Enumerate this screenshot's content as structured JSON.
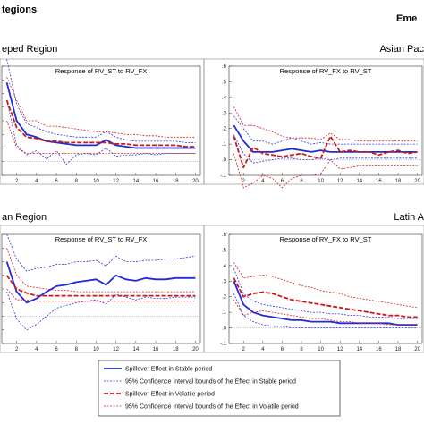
{
  "headers": {
    "left_group": "tegions",
    "right_group": "Eme",
    "top_left_region": "eped Region",
    "top_right_region": "Asian Pac",
    "bottom_left_region": "an Region",
    "bottom_right_region": "Latin A"
  },
  "legend": {
    "items": [
      {
        "label": "Spillover Effect in Stable period",
        "color": "#1f2bd6",
        "style": "solid-thick"
      },
      {
        "label": "95% Confidence Interval bounds of the Effect in Stable period",
        "color": "#2b36e0",
        "style": "dotted"
      },
      {
        "label": "Spillover Effect in Volatile period",
        "color": "#cc1a1a",
        "style": "dashed-thick"
      },
      {
        "label": "95% Confidence Interval bounds of the Effect in Volatile period",
        "color": "#d62020",
        "style": "dotted"
      }
    ]
  },
  "chart_data": [
    {
      "type": "line",
      "title": "Response of RV_ST to RV_FX",
      "x": [
        1,
        2,
        3,
        4,
        5,
        6,
        7,
        8,
        9,
        10,
        11,
        12,
        13,
        14,
        15,
        16,
        17,
        18,
        19,
        20
      ],
      "xticks": [
        2,
        4,
        6,
        8,
        10,
        12,
        14,
        16,
        18,
        20
      ],
      "series": [
        {
          "name": "Spillover Effect in Stable period",
          "values": [
            0.58,
            0.3,
            0.2,
            0.18,
            0.15,
            0.14,
            0.13,
            0.12,
            0.12,
            0.12,
            0.16,
            0.12,
            0.11,
            0.1,
            0.1,
            0.1,
            0.1,
            0.1,
            0.1,
            0.1
          ]
        },
        {
          "name": "95% Confidence Interval bounds of the Effect in Stable period (upper)",
          "values": [
            0.75,
            0.42,
            0.28,
            0.25,
            0.22,
            0.2,
            0.19,
            0.18,
            0.18,
            0.18,
            0.22,
            0.18,
            0.16,
            0.15,
            0.15,
            0.15,
            0.15,
            0.15,
            0.14,
            0.14
          ]
        },
        {
          "name": "95% Confidence Interval bounds of the Effect in Stable period (lower)",
          "values": [
            0.45,
            0.12,
            0.05,
            0.08,
            0.02,
            0.08,
            -0.02,
            0.05,
            0.06,
            0.05,
            0.1,
            0.04,
            0.05,
            0.05,
            0.06,
            0.05,
            0.06,
            0.06,
            0.06,
            0.06
          ]
        },
        {
          "name": "Spillover Effect in Volatile period",
          "values": [
            0.45,
            0.25,
            0.18,
            0.17,
            0.15,
            0.15,
            0.14,
            0.14,
            0.14,
            0.14,
            0.14,
            0.13,
            0.13,
            0.12,
            0.12,
            0.12,
            0.12,
            0.12,
            0.11,
            0.11
          ]
        },
        {
          "name": "95% Confidence Interval bounds of the Effect in Volatile period (upper)",
          "values": [
            0.62,
            0.45,
            0.3,
            0.3,
            0.26,
            0.26,
            0.25,
            0.24,
            0.23,
            0.22,
            0.22,
            0.21,
            0.2,
            0.2,
            0.19,
            0.19,
            0.18,
            0.18,
            0.18,
            0.18
          ]
        },
        {
          "name": "95% Confidence Interval bounds of the Effect in Volatile period (lower)",
          "values": [
            0.3,
            0.1,
            0.06,
            0.06,
            0.06,
            0.06,
            0.06,
            0.06,
            0.06,
            0.06,
            0.06,
            0.06,
            0.06,
            0.06,
            0.06,
            0.06,
            0.06,
            0.06,
            0.06,
            0.06
          ]
        }
      ],
      "ylim": [
        -0.1,
        0.7
      ]
    },
    {
      "type": "line",
      "title": "Response of RV_FX to RV_ST",
      "x": [
        1,
        2,
        3,
        4,
        5,
        6,
        7,
        8,
        9,
        10,
        11,
        12,
        13,
        14,
        15,
        16,
        17,
        18,
        19,
        20
      ],
      "xticks": [
        2,
        4,
        6,
        8,
        10,
        12,
        14,
        16,
        18,
        20
      ],
      "yticks": [
        ".6",
        ".5",
        ".4",
        ".3",
        ".2",
        ".1",
        ".0",
        "-.1"
      ],
      "series": [
        {
          "name": "Spillover Effect in Stable period",
          "values": [
            0.22,
            0.12,
            0.05,
            0.05,
            0.05,
            0.06,
            0.07,
            0.06,
            0.05,
            0.06,
            0.05,
            0.05,
            0.05,
            0.05,
            0.05,
            0.05,
            0.05,
            0.05,
            0.05,
            0.05
          ]
        },
        {
          "name": "95% Confidence Interval bounds of the Effect in Stable period (upper)",
          "values": [
            0.28,
            0.2,
            0.12,
            0.12,
            0.1,
            0.12,
            0.14,
            0.12,
            0.1,
            0.11,
            0.1,
            0.1,
            0.1,
            0.1,
            0.1,
            0.1,
            0.1,
            0.1,
            0.1,
            0.1
          ]
        },
        {
          "name": "95% Confidence Interval bounds of the Effect in Stable period (lower)",
          "values": [
            0.16,
            0.04,
            -0.02,
            -0.01,
            0.0,
            0.01,
            0.01,
            0.0,
            0.0,
            0.01,
            0.0,
            0.01,
            0.01,
            0.01,
            0.01,
            0.01,
            0.01,
            0.01,
            0.01,
            0.01
          ]
        },
        {
          "name": "Spillover Effect in Volatile period",
          "values": [
            0.15,
            -0.05,
            0.08,
            0.04,
            0.03,
            0.02,
            0.03,
            0.04,
            0.02,
            0.01,
            0.15,
            0.05,
            0.06,
            0.05,
            0.05,
            0.03,
            0.05,
            0.06,
            0.04,
            0.05
          ]
        },
        {
          "name": "95% Confidence Interval bounds of the Effect in Volatile period (upper)",
          "values": [
            0.34,
            0.22,
            0.22,
            0.2,
            0.18,
            0.15,
            0.14,
            0.14,
            0.14,
            0.13,
            0.17,
            0.13,
            0.13,
            0.12,
            0.12,
            0.12,
            0.12,
            0.12,
            0.12,
            0.12
          ]
        },
        {
          "name": "95% Confidence Interval bounds of the Effect in Volatile period (lower)",
          "values": [
            0.04,
            -0.18,
            -0.15,
            -0.1,
            -0.12,
            -0.18,
            -0.12,
            -0.1,
            -0.1,
            -0.09,
            0.0,
            -0.06,
            -0.05,
            -0.04,
            -0.04,
            -0.04,
            -0.04,
            -0.04,
            -0.04,
            -0.04
          ]
        }
      ],
      "ylim": [
        -0.1,
        0.6
      ]
    },
    {
      "type": "line",
      "title": "Response of RV_ST to RV_FX",
      "x": [
        1,
        2,
        3,
        4,
        5,
        6,
        7,
        8,
        9,
        10,
        11,
        12,
        13,
        14,
        15,
        16,
        17,
        18,
        19,
        20
      ],
      "xticks": [
        2,
        4,
        6,
        8,
        10,
        12,
        14,
        16,
        18,
        20
      ],
      "series": [
        {
          "name": "Spillover Effect in Stable period",
          "values": [
            0.4,
            0.18,
            0.1,
            0.13,
            0.18,
            0.22,
            0.23,
            0.25,
            0.26,
            0.27,
            0.23,
            0.3,
            0.27,
            0.26,
            0.28,
            0.27,
            0.27,
            0.28,
            0.28,
            0.28
          ]
        },
        {
          "name": "95% Confidence Interval bounds of the Effect in Stable period (upper)",
          "values": [
            0.6,
            0.42,
            0.33,
            0.35,
            0.36,
            0.38,
            0.38,
            0.4,
            0.4,
            0.41,
            0.37,
            0.44,
            0.4,
            0.4,
            0.41,
            0.41,
            0.42,
            0.42,
            0.43,
            0.44
          ]
        },
        {
          "name": "95% Confidence Interval bounds of the Effect in Stable period (lower)",
          "values": [
            0.18,
            -0.02,
            -0.1,
            -0.06,
            0.0,
            0.06,
            0.08,
            0.1,
            0.11,
            0.12,
            0.09,
            0.16,
            0.14,
            0.12,
            0.14,
            0.13,
            0.13,
            0.14,
            0.14,
            0.14
          ]
        },
        {
          "name": "Spillover Effect in Volatile period",
          "values": [
            0.3,
            0.2,
            0.17,
            0.15,
            0.15,
            0.15,
            0.15,
            0.15,
            0.15,
            0.15,
            0.15,
            0.15,
            0.15,
            0.15,
            0.15,
            0.15,
            0.15,
            0.15,
            0.15,
            0.15
          ]
        },
        {
          "name": "95% Confidence Interval bounds of the Effect in Volatile period (upper)",
          "values": [
            0.5,
            0.3,
            0.22,
            0.21,
            0.2,
            0.19,
            0.19,
            0.18,
            0.18,
            0.18,
            0.18,
            0.18,
            0.18,
            0.18,
            0.18,
            0.18,
            0.18,
            0.18,
            0.18,
            0.18
          ]
        },
        {
          "name": "95% Confidence Interval bounds of the Effect in Volatile period (lower)",
          "values": [
            0.2,
            0.12,
            0.12,
            0.11,
            0.11,
            0.11,
            0.11,
            0.11,
            0.11,
            0.11,
            0.11,
            0.11,
            0.11,
            0.11,
            0.11,
            0.11,
            0.11,
            0.11,
            0.11,
            0.11
          ]
        }
      ],
      "ylim": [
        -0.2,
        0.6
      ]
    },
    {
      "type": "line",
      "title": "Response of RV_FX to RV_ST",
      "x": [
        1,
        2,
        3,
        4,
        5,
        6,
        7,
        8,
        9,
        10,
        11,
        12,
        13,
        14,
        15,
        16,
        17,
        18,
        19,
        20
      ],
      "xticks": [
        2,
        4,
        6,
        8,
        10,
        12,
        14,
        16,
        18,
        20
      ],
      "yticks": [
        ".6",
        ".5",
        ".4",
        ".3",
        ".2",
        ".1",
        ".0",
        "-.1"
      ],
      "series": [
        {
          "name": "Spillover Effect in Stable period",
          "values": [
            0.3,
            0.15,
            0.1,
            0.08,
            0.07,
            0.06,
            0.05,
            0.05,
            0.04,
            0.04,
            0.04,
            0.03,
            0.03,
            0.03,
            0.03,
            0.03,
            0.03,
            0.02,
            0.02,
            0.02
          ]
        },
        {
          "name": "95% Confidence Interval bounds of the Effect in Stable period (upper)",
          "values": [
            0.38,
            0.22,
            0.17,
            0.15,
            0.14,
            0.13,
            0.12,
            0.11,
            0.1,
            0.1,
            0.09,
            0.09,
            0.08,
            0.08,
            0.07,
            0.07,
            0.07,
            0.06,
            0.06,
            0.06
          ]
        },
        {
          "name": "95% Confidence Interval bounds of the Effect in Stable period (lower)",
          "values": [
            0.22,
            0.08,
            0.04,
            0.02,
            0.01,
            0.01,
            0.0,
            0.0,
            0.0,
            0.0,
            0.0,
            0.0,
            0.0,
            0.0,
            0.0,
            0.0,
            0.0,
            0.0,
            0.0,
            0.0
          ]
        },
        {
          "name": "Spillover Effect in Volatile period",
          "values": [
            0.32,
            0.2,
            0.22,
            0.23,
            0.22,
            0.2,
            0.18,
            0.17,
            0.16,
            0.15,
            0.14,
            0.13,
            0.12,
            0.11,
            0.1,
            0.09,
            0.08,
            0.08,
            0.07,
            0.07
          ]
        },
        {
          "name": "95% Confidence Interval bounds of the Effect in Volatile period (upper)",
          "values": [
            0.42,
            0.32,
            0.33,
            0.34,
            0.33,
            0.31,
            0.29,
            0.27,
            0.26,
            0.24,
            0.23,
            0.22,
            0.2,
            0.19,
            0.18,
            0.17,
            0.16,
            0.15,
            0.14,
            0.13
          ]
        },
        {
          "name": "95% Confidence Interval bounds of the Effect in Volatile period (lower)",
          "values": [
            0.18,
            0.08,
            0.1,
            0.11,
            0.1,
            0.09,
            0.08,
            0.07,
            0.06,
            0.06,
            0.05,
            0.04,
            0.04,
            0.03,
            0.03,
            0.03,
            0.02,
            0.02,
            0.02,
            0.02
          ]
        }
      ],
      "ylim": [
        -0.1,
        0.6
      ]
    }
  ]
}
